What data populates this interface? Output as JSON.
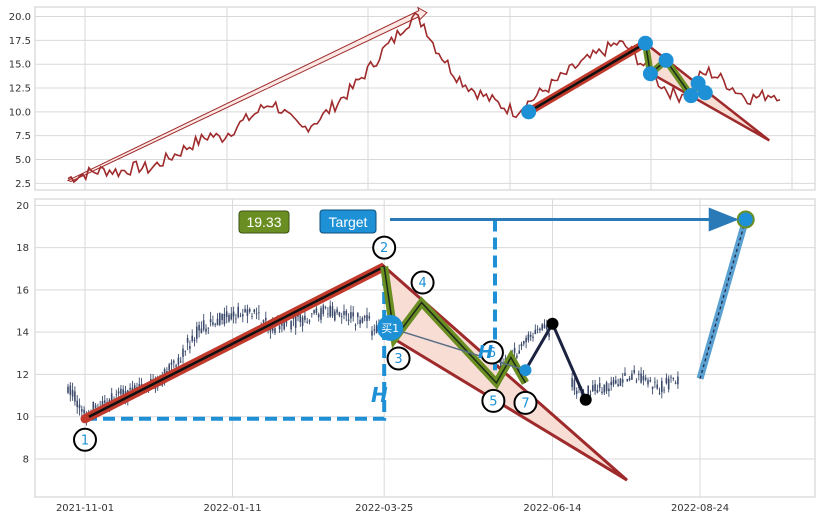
{
  "colors": {
    "price_line": "#9e2a2b",
    "candle": "#3b4a6b",
    "trend_red": "#c0392b",
    "trend_black": "#111111",
    "wave_green": "#6b8e23",
    "pivot_blue": "#1e90d6",
    "triangle_fill": "#f8ddd5",
    "triangle_edge": "#9e2a2b",
    "target_arrow": "#2a7ab8",
    "grid": "#d9d9d9"
  },
  "chart_data": [
    {
      "type": "line",
      "panel": "overview",
      "title": "",
      "xlabel": "",
      "ylabel": "",
      "ylim": [
        1.8,
        21.0
      ],
      "yticks": [
        "2.5",
        "5.0",
        "7.5",
        "10.0",
        "12.5",
        "15.0",
        "17.5",
        "20.0"
      ],
      "grid": true,
      "series": [
        {
          "values": [
            3.0,
            3.3,
            3.6,
            3.8,
            3.9,
            3.7,
            4.0,
            4.2,
            4.0,
            4.6,
            5.2,
            5.8,
            6.5,
            7.0,
            7.6,
            7.2,
            8.0,
            8.8,
            9.5,
            10.3,
            11.0,
            10.2,
            9.0,
            8.2,
            8.8,
            9.5,
            10.5,
            11.5,
            12.5,
            13.8,
            15.0,
            16.5,
            17.5,
            19.0,
            20.0,
            19.2,
            17.0,
            15.5,
            14.0,
            13.0,
            12.2,
            11.6,
            11.0,
            10.5,
            10.0,
            10.8,
            11.6,
            12.4,
            13.2,
            14.0,
            14.8,
            15.4,
            16.0,
            16.6,
            17.2,
            16.8,
            15.6,
            14.4,
            13.2,
            12.2,
            11.6,
            12.6,
            13.6,
            14.2,
            13.6,
            12.8,
            12.0,
            11.4,
            11.6,
            11.9,
            11.8
          ]
        }
      ],
      "trendline": {
        "x": [
          0.0,
          0.49
        ],
        "y": [
          2.8,
          20.2
        ]
      },
      "pattern_points": [
        {
          "x": 0.647,
          "y": 10.0
        },
        {
          "x": 0.811,
          "y": 17.2
        },
        {
          "x": 0.818,
          "y": 14.0
        },
        {
          "x": 0.84,
          "y": 15.4
        },
        {
          "x": 0.875,
          "y": 11.7
        },
        {
          "x": 0.885,
          "y": 13.0
        },
        {
          "x": 0.895,
          "y": 12.0
        }
      ],
      "triangle": [
        {
          "x": 0.811,
          "y": 17.2
        },
        {
          "x": 0.985,
          "y": 7.0
        },
        {
          "x": 0.815,
          "y": 14.2
        }
      ]
    },
    {
      "type": "line",
      "panel": "detail",
      "title": "",
      "xlabel": "",
      "ylabel": "",
      "ylim": [
        6.2,
        20.3
      ],
      "yticks": [
        "8",
        "10",
        "12",
        "14",
        "16",
        "18",
        "20"
      ],
      "x_tick_labels": [
        "2021-11-01",
        "2022-01-11",
        "2022-03-25",
        "2022-06-14",
        "2022-08-24"
      ],
      "grid": true,
      "pivots": [
        {
          "label": "1",
          "x": "2021-11-01",
          "y": 9.9
        },
        {
          "label": "2",
          "x": "2022-03-25",
          "y": 17.1
        },
        {
          "label": "3",
          "x": "2022-03-30",
          "y": 13.7
        },
        {
          "label": "4",
          "x": "2022-04-12",
          "y": 15.4
        },
        {
          "label": "5",
          "x": "2022-05-18",
          "y": 11.6
        },
        {
          "label": "6",
          "x": "2022-05-25",
          "y": 12.8
        },
        {
          "label": "7",
          "x": "2022-06-01",
          "y": 11.6
        }
      ],
      "buy_marker": {
        "label": "买1",
        "x": "2022-03-25",
        "y": 14.2
      },
      "h_label": "H",
      "value_badge": "19.33",
      "target_badge": "Target",
      "target_value": 19.33,
      "black_path": [
        {
          "x": "2022-06-01",
          "y": 12.2
        },
        {
          "x": "2022-06-14",
          "y": 14.4
        },
        {
          "x": "2022-06-30",
          "y": 10.8
        }
      ],
      "projection": [
        {
          "x": "2022-08-24",
          "y": 11.8
        },
        {
          "x": "2022-09-15",
          "y": 19.33
        }
      ]
    }
  ]
}
